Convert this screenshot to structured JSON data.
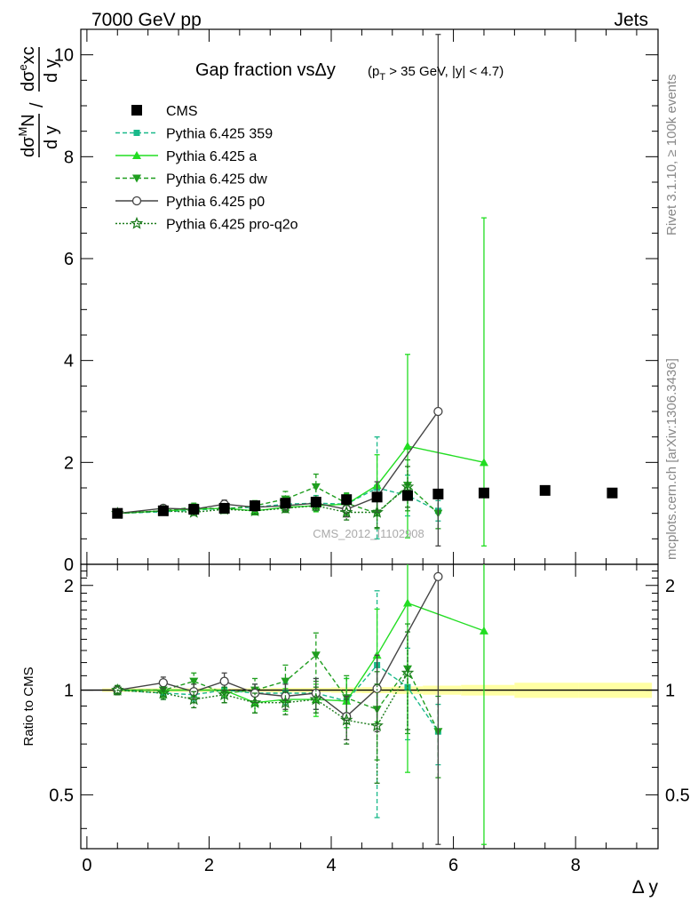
{
  "header": {
    "energy_label": "7000 GeV pp",
    "category_label": "Jets",
    "plot_id": "CMS_2012_I1102908",
    "side_rivet": "Rivet 3.1.10, ≥ 100k events",
    "side_site": "mcplots.cern.ch [arXiv:1306.3436]"
  },
  "chart_data": [
    {
      "type": "line",
      "title": "Gap fraction vsΔy",
      "subtitle": "(p_T > 35 GeV, |y| < 4.7)",
      "ylabel": "dσ^M N/d y / dσ^e xc/d y",
      "xlim": [
        -0.1,
        9.35
      ],
      "ylim": [
        0,
        10.5
      ],
      "yticks": [
        0,
        2,
        4,
        6,
        8,
        10
      ],
      "legend_position": "top-left",
      "series": [
        {
          "name": "CMS",
          "color": "#000000",
          "x": [
            0.5,
            1.25,
            1.75,
            2.25,
            2.75,
            3.25,
            3.75,
            4.25,
            4.75,
            5.25,
            5.75,
            6.5,
            7.5,
            8.6
          ],
          "y": [
            1.0,
            1.05,
            1.08,
            1.1,
            1.15,
            1.2,
            1.22,
            1.27,
            1.32,
            1.35,
            1.38,
            1.4,
            1.45,
            1.4
          ]
        },
        {
          "name": "Pythia 6.425 359",
          "color": "#1ab98a",
          "x": [
            0.5,
            1.25,
            1.75,
            2.25,
            2.75,
            3.25,
            3.75,
            4.25,
            4.75,
            5.25,
            5.75
          ],
          "y": [
            1.0,
            1.03,
            1.06,
            1.1,
            1.12,
            1.18,
            1.2,
            1.18,
            1.5,
            1.35,
            1.05
          ],
          "yerr": [
            0.05,
            0.05,
            0.06,
            0.07,
            0.08,
            0.1,
            0.15,
            0.2,
            1.0,
            0.4,
            0.2
          ]
        },
        {
          "name": "Pythia 6.425 a",
          "color": "#22dd22",
          "x": [
            0.5,
            1.25,
            1.75,
            2.25,
            2.75,
            3.25,
            3.75,
            4.25,
            4.75,
            5.25,
            6.5
          ],
          "y": [
            1.0,
            1.05,
            1.08,
            1.1,
            1.05,
            1.12,
            1.15,
            1.18,
            1.55,
            2.32,
            2.0
          ],
          "yerr": [
            0.05,
            0.05,
            0.06,
            0.06,
            0.08,
            0.1,
            0.12,
            0.2,
            0.6,
            1.8,
            4.8
          ]
        },
        {
          "name": "Pythia 6.425 dw",
          "color": "#1f9e1f",
          "x": [
            0.5,
            1.25,
            1.75,
            2.25,
            2.75,
            3.25,
            3.75,
            4.25,
            4.75,
            5.25,
            5.75
          ],
          "y": [
            1.0,
            1.05,
            1.12,
            1.08,
            1.15,
            1.28,
            1.52,
            1.2,
            1.0,
            1.55,
            1.0
          ],
          "yerr": [
            0.05,
            0.06,
            0.08,
            0.08,
            0.1,
            0.15,
            0.25,
            0.2,
            0.3,
            0.5,
            0.3
          ]
        },
        {
          "name": "Pythia 6.425 p0",
          "color": "#444444",
          "x": [
            0.5,
            1.25,
            1.75,
            2.25,
            2.75,
            3.25,
            3.75,
            4.25,
            4.75,
            5.75
          ],
          "y": [
            1.0,
            1.1,
            1.08,
            1.18,
            1.12,
            1.15,
            1.2,
            1.08,
            1.32,
            3.0
          ],
          "yerr": [
            0.05,
            0.06,
            0.07,
            0.08,
            0.08,
            0.1,
            0.12,
            0.15,
            0.3,
            7.4
          ]
        },
        {
          "name": "Pythia 6.425 pro-q2o",
          "color": "#1a7a1a",
          "x": [
            0.5,
            1.25,
            1.75,
            2.25,
            2.75,
            3.25,
            3.75,
            4.25,
            4.75,
            5.25
          ],
          "y": [
            1.0,
            1.05,
            1.02,
            1.08,
            1.05,
            1.1,
            1.15,
            1.02,
            1.02,
            1.52
          ],
          "yerr": [
            0.05,
            0.05,
            0.06,
            0.06,
            0.07,
            0.08,
            0.1,
            0.15,
            0.3,
            0.4
          ]
        }
      ]
    },
    {
      "type": "line",
      "ylabel": "Ratio to CMS",
      "xlabel": "Δ y",
      "xlim": [
        -0.1,
        9.35
      ],
      "ylim": [
        0.35,
        2.3
      ],
      "yscale": "log",
      "yticks": [
        0.5,
        1,
        2
      ],
      "xticks": [
        0,
        2,
        4,
        6,
        8
      ],
      "reference_band_color": "#ffff99",
      "series": [
        {
          "name": "Pythia 6.425 359",
          "color": "#1ab98a",
          "x": [
            0.5,
            1.25,
            1.75,
            2.25,
            2.75,
            3.25,
            3.75,
            4.25,
            4.75,
            5.25,
            5.75
          ],
          "y": [
            1.0,
            0.98,
            0.97,
            1.0,
            0.98,
            0.98,
            0.98,
            0.93,
            1.18,
            1.02,
            0.76
          ],
          "yerr": [
            0.03,
            0.04,
            0.04,
            0.05,
            0.06,
            0.07,
            0.1,
            0.15,
            0.75,
            0.3,
            0.15
          ]
        },
        {
          "name": "Pythia 6.425 a",
          "color": "#22dd22",
          "x": [
            0.5,
            1.25,
            1.75,
            2.25,
            2.75,
            3.25,
            3.75,
            4.25,
            4.75,
            5.25,
            6.5
          ],
          "y": [
            1.0,
            1.0,
            1.0,
            1.0,
            0.92,
            0.94,
            0.94,
            0.93,
            1.26,
            1.78,
            1.48
          ],
          "yerr": [
            0.03,
            0.04,
            0.04,
            0.04,
            0.06,
            0.07,
            0.1,
            0.15,
            0.45,
            1.2,
            3.0
          ]
        },
        {
          "name": "Pythia 6.425 dw",
          "color": "#1f9e1f",
          "x": [
            0.5,
            1.25,
            1.75,
            2.25,
            2.75,
            3.25,
            3.75,
            4.25,
            4.75,
            5.25,
            5.75
          ],
          "y": [
            1.0,
            1.0,
            1.06,
            0.98,
            1.0,
            1.06,
            1.26,
            0.95,
            0.88,
            1.15,
            0.76
          ],
          "yerr": [
            0.03,
            0.05,
            0.06,
            0.06,
            0.08,
            0.12,
            0.2,
            0.15,
            0.25,
            0.4,
            0.2
          ]
        },
        {
          "name": "Pythia 6.425 p0",
          "color": "#444444",
          "x": [
            0.5,
            1.25,
            1.75,
            2.25,
            2.75,
            3.25,
            3.75,
            4.25,
            4.75,
            5.75
          ],
          "y": [
            1.0,
            1.05,
            0.99,
            1.06,
            0.98,
            0.96,
            0.98,
            0.84,
            1.01,
            2.12
          ],
          "yerr": [
            0.03,
            0.04,
            0.05,
            0.06,
            0.06,
            0.08,
            0.1,
            0.12,
            0.25,
            5.0
          ]
        },
        {
          "name": "Pythia 6.425 pro-q2o",
          "color": "#1a7a1a",
          "x": [
            0.5,
            1.25,
            1.75,
            2.25,
            2.75,
            3.25,
            3.75,
            4.25,
            4.75,
            5.25
          ],
          "y": [
            1.0,
            0.98,
            0.94,
            0.97,
            0.92,
            0.92,
            0.94,
            0.82,
            0.79,
            1.12
          ],
          "yerr": [
            0.03,
            0.04,
            0.05,
            0.05,
            0.06,
            0.07,
            0.08,
            0.12,
            0.25,
            0.35
          ]
        }
      ]
    }
  ]
}
